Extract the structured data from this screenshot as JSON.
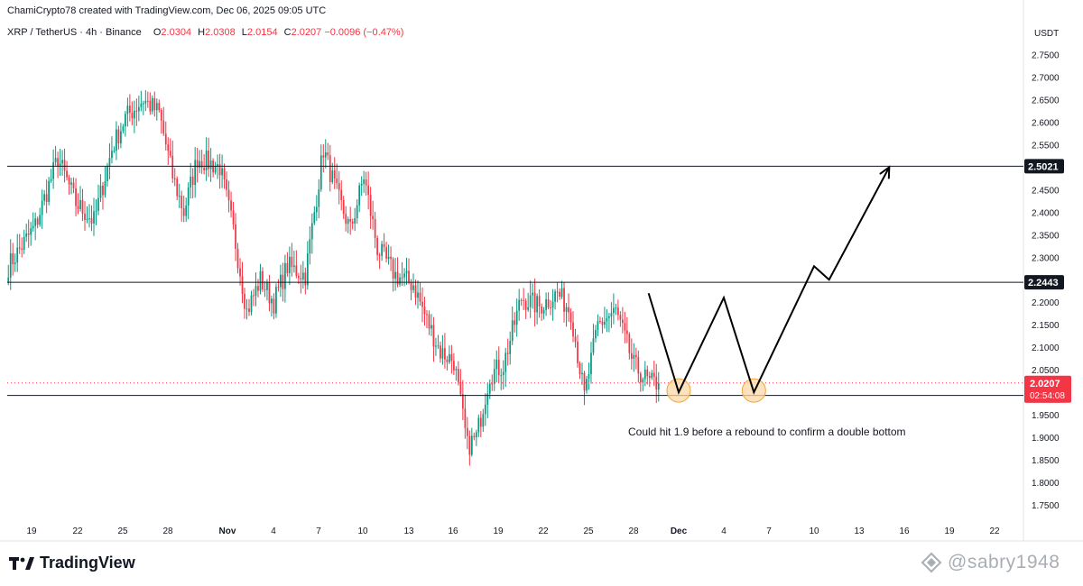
{
  "header": {
    "credit": "ChamiCrypto78 created with TradingView.com, Dec 06, 2025 09:05 UTC"
  },
  "symbol_bar": {
    "symbol": "XRP / TetherUS · 4h · Binance",
    "open_label": "O",
    "open": "2.0304",
    "high_label": "H",
    "high": "2.0308",
    "low_label": "L",
    "low": "2.0154",
    "close_label": "C",
    "close": "2.0207",
    "change": "−0.0096 (−0.47%)"
  },
  "price_axis": {
    "currency": "USDT",
    "ticks": [
      "2.7500",
      "2.7000",
      "2.6500",
      "2.6000",
      "2.5500",
      "2.5000",
      "2.4500",
      "2.4000",
      "2.3500",
      "2.3000",
      "2.2500",
      "2.2000",
      "2.1500",
      "2.1000",
      "2.0500",
      "2.0000",
      "1.9500",
      "1.9000",
      "1.8500",
      "1.8000",
      "1.7500"
    ]
  },
  "time_axis": {
    "ticks": [
      "19",
      "22",
      "25",
      "28",
      "Nov",
      "4",
      "7",
      "10",
      "13",
      "16",
      "19",
      "22",
      "25",
      "28",
      "Dec",
      "4",
      "7",
      "10",
      "13",
      "16",
      "19",
      "22"
    ]
  },
  "colors": {
    "up": "#089981",
    "down": "#f23645",
    "line": "#000000",
    "marker_fill": "#fcd8a4",
    "marker_stroke": "#f0a43a",
    "current_price_bg": "#f23645"
  },
  "chart_data": {
    "type": "candlestick",
    "title": "XRP / TetherUS · 4h · Binance",
    "ylabel": "USDT",
    "ylim": [
      1.72,
      2.775
    ],
    "x_ticks": [
      "19",
      "22",
      "25",
      "28",
      "Nov",
      "4",
      "7",
      "10",
      "13",
      "16",
      "19",
      "22",
      "25",
      "28",
      "Dec",
      "4",
      "7",
      "10",
      "13",
      "16",
      "19",
      "22"
    ],
    "candle_count": 290,
    "close_path": [
      {
        "index": 0,
        "close": 2.28
      },
      {
        "index": 12,
        "close": 2.37
      },
      {
        "index": 22,
        "close": 2.52
      },
      {
        "index": 30,
        "close": 2.42
      },
      {
        "index": 38,
        "close": 2.38
      },
      {
        "index": 46,
        "close": 2.54
      },
      {
        "index": 52,
        "close": 2.61
      },
      {
        "index": 60,
        "close": 2.65
      },
      {
        "index": 67,
        "close": 2.62
      },
      {
        "index": 73,
        "close": 2.48
      },
      {
        "index": 78,
        "close": 2.4
      },
      {
        "index": 84,
        "close": 2.52
      },
      {
        "index": 94,
        "close": 2.5
      },
      {
        "index": 100,
        "close": 2.36
      },
      {
        "index": 106,
        "close": 2.18
      },
      {
        "index": 112,
        "close": 2.25
      },
      {
        "index": 118,
        "close": 2.2
      },
      {
        "index": 124,
        "close": 2.28
      },
      {
        "index": 132,
        "close": 2.26
      },
      {
        "index": 140,
        "close": 2.54
      },
      {
        "index": 146,
        "close": 2.44
      },
      {
        "index": 152,
        "close": 2.36
      },
      {
        "index": 158,
        "close": 2.48
      },
      {
        "index": 164,
        "close": 2.32
      },
      {
        "index": 172,
        "close": 2.26
      },
      {
        "index": 180,
        "close": 2.24
      },
      {
        "index": 186,
        "close": 2.16
      },
      {
        "index": 192,
        "close": 2.09
      },
      {
        "index": 198,
        "close": 2.07
      },
      {
        "index": 204,
        "close": 1.88
      },
      {
        "index": 208,
        "close": 1.9
      },
      {
        "index": 214,
        "close": 2.04
      },
      {
        "index": 220,
        "close": 2.06
      },
      {
        "index": 228,
        "close": 2.21
      },
      {
        "index": 236,
        "close": 2.19
      },
      {
        "index": 244,
        "close": 2.22
      },
      {
        "index": 250,
        "close": 2.18
      },
      {
        "index": 256,
        "close": 1.99
      },
      {
        "index": 262,
        "close": 2.15
      },
      {
        "index": 270,
        "close": 2.18
      },
      {
        "index": 278,
        "close": 2.06
      },
      {
        "index": 285,
        "close": 2.02
      },
      {
        "index": 289,
        "close": 2.0207
      }
    ],
    "horizontal_levels": [
      {
        "value": 2.5021,
        "label": "2.5021"
      },
      {
        "value": 2.2443,
        "label": "2.2443"
      },
      {
        "value": 1.9931,
        "label": "1.9931"
      }
    ],
    "current_price": {
      "value": 2.0207,
      "label": "2.0207",
      "countdown": "02:54:08"
    },
    "projection_path": [
      {
        "date": "Nov 29",
        "price": 2.22
      },
      {
        "date": "Dec 1",
        "price": 2.0
      },
      {
        "date": "Dec 4",
        "price": 2.21
      },
      {
        "date": "Dec 6",
        "price": 2.0
      },
      {
        "date": "Dec 10",
        "price": 2.28
      },
      {
        "date": "Dec 11",
        "price": 2.25
      },
      {
        "date": "Dec 15",
        "price": 2.5
      }
    ],
    "double_bottom_markers": [
      {
        "date": "Dec 1",
        "price": 2.0
      },
      {
        "date": "Dec 6",
        "price": 2.0
      }
    ],
    "annotation": "Could hit 1.9 before a rebound to confirm a double bottom"
  },
  "branding": {
    "logo_text": "TradingView",
    "watermark": "@sabry1948"
  }
}
